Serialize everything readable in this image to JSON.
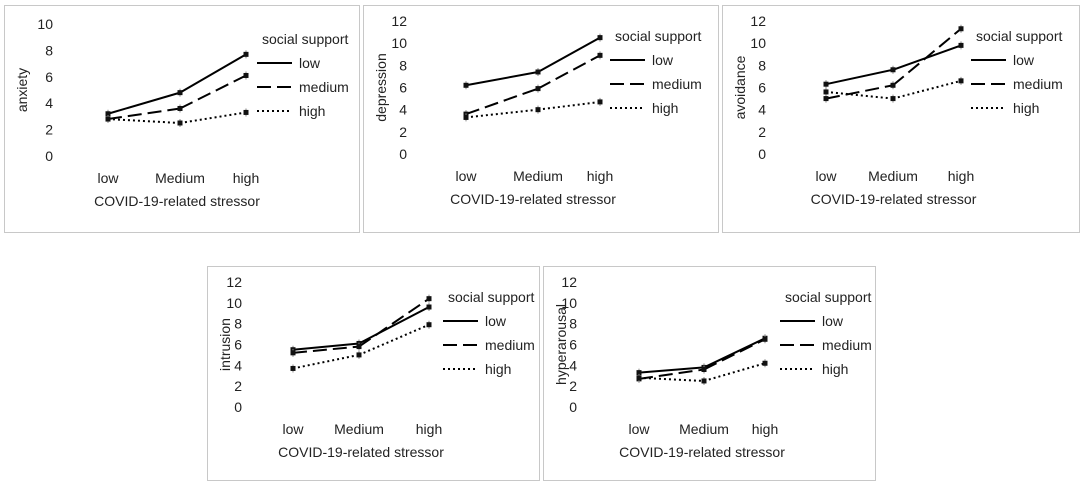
{
  "figure": {
    "legend_title": "social support",
    "series_names": [
      "low",
      "medium",
      "high"
    ],
    "xlabel": "COVID-19-related stressor",
    "categories": [
      "low",
      "Medium",
      "high"
    ]
  },
  "chart_data": [
    {
      "type": "line",
      "ylabel": "anxiety",
      "ylim": [
        0,
        10
      ],
      "yticks": [
        0,
        2,
        4,
        6,
        8,
        10
      ],
      "xlabel": "COVID-19-related stressor",
      "categories": [
        "low",
        "Medium",
        "high"
      ],
      "legend_title": "social support",
      "series": [
        {
          "name": "low",
          "values": [
            3.2,
            4.8,
            7.7
          ]
        },
        {
          "name": "medium",
          "values": [
            2.8,
            3.6,
            6.1
          ]
        },
        {
          "name": "high",
          "values": [
            2.8,
            2.5,
            3.3
          ]
        }
      ]
    },
    {
      "type": "line",
      "ylabel": "depression",
      "ylim": [
        0,
        12
      ],
      "yticks": [
        0,
        2,
        4,
        6,
        8,
        10,
        12
      ],
      "xlabel": "COVID-19-related stressor",
      "categories": [
        "low",
        "Medium",
        "high"
      ],
      "legend_title": "social support",
      "series": [
        {
          "name": "low",
          "values": [
            6.2,
            7.4,
            10.5
          ]
        },
        {
          "name": "medium",
          "values": [
            3.6,
            5.9,
            8.9
          ]
        },
        {
          "name": "high",
          "values": [
            3.3,
            4.0,
            4.7
          ]
        }
      ]
    },
    {
      "type": "line",
      "ylabel": "avoidance",
      "ylim": [
        0,
        12
      ],
      "yticks": [
        0,
        2,
        4,
        6,
        8,
        10,
        12
      ],
      "xlabel": "COVID-19-related stressor",
      "categories": [
        "low",
        "Medium",
        "high"
      ],
      "legend_title": "social support",
      "series": [
        {
          "name": "low",
          "values": [
            6.3,
            7.6,
            9.8
          ]
        },
        {
          "name": "medium",
          "values": [
            5.0,
            6.2,
            11.3
          ]
        },
        {
          "name": "high",
          "values": [
            5.6,
            5.0,
            6.6
          ]
        }
      ]
    },
    {
      "type": "line",
      "ylabel": "intrusion",
      "ylim": [
        0,
        12
      ],
      "yticks": [
        0,
        2,
        4,
        6,
        8,
        10,
        12
      ],
      "xlabel": "COVID-19-related stressor",
      "categories": [
        "low",
        "Medium",
        "high"
      ],
      "legend_title": "social support",
      "series": [
        {
          "name": "low",
          "values": [
            5.5,
            6.1,
            9.6
          ]
        },
        {
          "name": "medium",
          "values": [
            5.2,
            5.8,
            10.4
          ]
        },
        {
          "name": "high",
          "values": [
            3.7,
            5.0,
            7.9
          ]
        }
      ]
    },
    {
      "type": "line",
      "ylabel": "hyperarousal",
      "ylim": [
        0,
        12
      ],
      "yticks": [
        0,
        2,
        4,
        6,
        8,
        10,
        12
      ],
      "xlabel": "COVID-19-related stressor",
      "categories": [
        "low",
        "Medium",
        "high"
      ],
      "legend_title": "social support",
      "series": [
        {
          "name": "low",
          "values": [
            3.3,
            3.8,
            6.6
          ]
        },
        {
          "name": "medium",
          "values": [
            2.7,
            3.6,
            6.5
          ]
        },
        {
          "name": "high",
          "values": [
            2.8,
            2.5,
            4.2
          ]
        }
      ]
    }
  ]
}
